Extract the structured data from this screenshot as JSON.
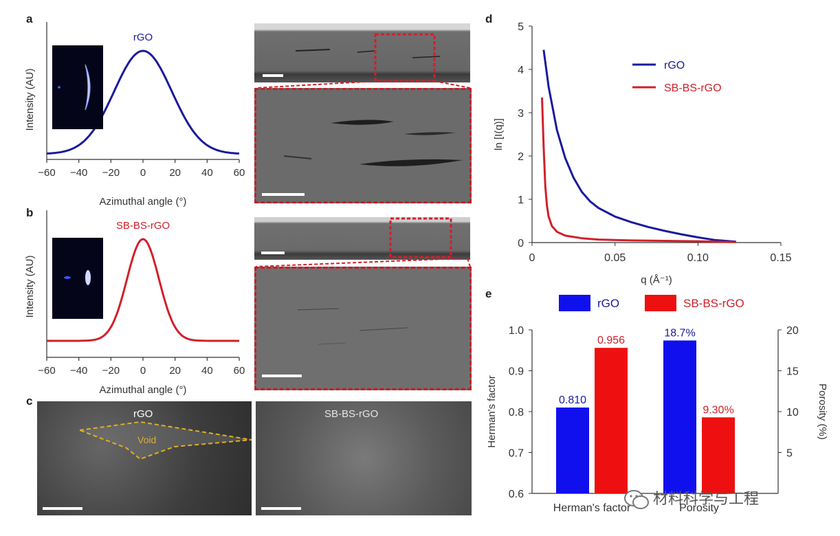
{
  "panels": {
    "a": {
      "label": "a",
      "curve_label": "rGO",
      "ylabel": "Intensity (AU)",
      "xlabel": "Azimuthal angle (°)",
      "xticks": [
        "−60",
        "−40",
        "−20",
        "0",
        "20",
        "40",
        "60"
      ],
      "color": "#1a1a9c"
    },
    "b": {
      "label": "b",
      "curve_label": "SB-BS-rGO",
      "ylabel": "Intensity (AU)",
      "xlabel": "Azimuthal angle (°)",
      "xticks": [
        "−60",
        "−40",
        "−20",
        "0",
        "20",
        "40",
        "60"
      ],
      "color": "#d0202a"
    },
    "c": {
      "label": "c",
      "left_title": "rGO",
      "void_label": "Void",
      "right_title": "SB-BS-rGO"
    },
    "d": {
      "label": "d"
    },
    "e": {
      "label": "e"
    }
  },
  "chart_data": [
    {
      "id": "d",
      "type": "line",
      "xlabel": "q (Å⁻¹)",
      "ylabel": "ln [I(q)]",
      "xlim": [
        0,
        0.15
      ],
      "ylim": [
        0,
        5
      ],
      "xticks": [
        "0",
        "0.05",
        "0.10",
        "0.15"
      ],
      "yticks": [
        "0",
        "1",
        "2",
        "3",
        "4",
        "5"
      ],
      "series": [
        {
          "name": "rGO",
          "color": "#1a1a9c",
          "x": [
            0.007,
            0.01,
            0.015,
            0.02,
            0.025,
            0.03,
            0.035,
            0.04,
            0.05,
            0.06,
            0.07,
            0.08,
            0.09,
            0.1,
            0.11,
            0.123
          ],
          "y": [
            4.45,
            3.6,
            2.6,
            1.95,
            1.5,
            1.17,
            0.95,
            0.8,
            0.6,
            0.47,
            0.36,
            0.27,
            0.19,
            0.12,
            0.06,
            0.02
          ]
        },
        {
          "name": "SB-BS-rGO",
          "color": "#d0202a",
          "x": [
            0.006,
            0.007,
            0.008,
            0.009,
            0.01,
            0.012,
            0.015,
            0.02,
            0.03,
            0.04,
            0.06,
            0.08,
            0.1,
            0.123
          ],
          "y": [
            3.35,
            2.2,
            1.3,
            0.85,
            0.6,
            0.38,
            0.25,
            0.16,
            0.1,
            0.07,
            0.05,
            0.04,
            0.03,
            0.01
          ]
        }
      ]
    },
    {
      "id": "e",
      "type": "bar",
      "categories": [
        "Herman's factor",
        "Porosity"
      ],
      "ylabel": "Herman's factor",
      "y2label": "Porosity (%)",
      "ylim": [
        0.6,
        1.0
      ],
      "y2lim": [
        0,
        20
      ],
      "yticks": [
        "0.6",
        "0.7",
        "0.8",
        "0.9",
        "1.0"
      ],
      "y2ticks": [
        "5",
        "10",
        "15",
        "20"
      ],
      "series": [
        {
          "name": "rGO",
          "color": "#1010ee",
          "values": [
            0.81,
            18.7
          ],
          "labels": [
            "0.810",
            "18.7%"
          ]
        },
        {
          "name": "SB-BS-rGO",
          "color": "#ee1010",
          "values": [
            0.956,
            9.3
          ],
          "labels": [
            "0.956",
            "9.30%"
          ]
        }
      ]
    }
  ],
  "watermark": {
    "text": "材料科学与工程",
    "icon": "wechat-icon"
  }
}
